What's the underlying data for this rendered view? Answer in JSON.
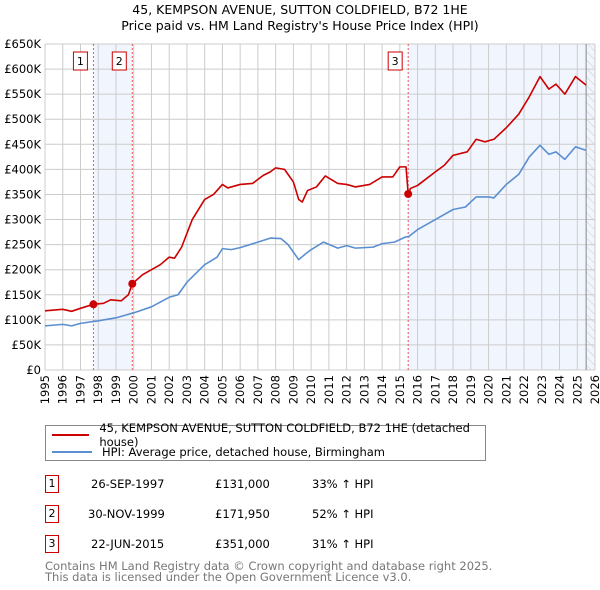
{
  "chart_data": {
    "type": "line",
    "title": "45, KEMPSON AVENUE, SUTTON COLDFIELD, B72 1HE",
    "subtitle": "Price paid vs. HM Land Registry's House Price Index (HPI)",
    "xlim": [
      1995,
      2026
    ],
    "ylim": [
      0,
      650000
    ],
    "x_ticks": [
      "1995",
      "1996",
      "1997",
      "1998",
      "1999",
      "2000",
      "2001",
      "2002",
      "2003",
      "2004",
      "2005",
      "2006",
      "2007",
      "2008",
      "2009",
      "2010",
      "2011",
      "2012",
      "2013",
      "2014",
      "2015",
      "2016",
      "2017",
      "2018",
      "2019",
      "2020",
      "2021",
      "2022",
      "2023",
      "2024",
      "2025",
      "2026"
    ],
    "y_ticks": [
      {
        "v": 0,
        "label": "£0"
      },
      {
        "v": 50000,
        "label": "£50K"
      },
      {
        "v": 100000,
        "label": "£100K"
      },
      {
        "v": 150000,
        "label": "£150K"
      },
      {
        "v": 200000,
        "label": "£200K"
      },
      {
        "v": 250000,
        "label": "£250K"
      },
      {
        "v": 300000,
        "label": "£300K"
      },
      {
        "v": 350000,
        "label": "£350K"
      },
      {
        "v": 400000,
        "label": "£400K"
      },
      {
        "v": 450000,
        "label": "£450K"
      },
      {
        "v": 500000,
        "label": "£500K"
      },
      {
        "v": 550000,
        "label": "£550K"
      },
      {
        "v": 600000,
        "label": "£600K"
      },
      {
        "v": 650000,
        "label": "£650K"
      }
    ],
    "grid": true,
    "shaded_periods": [
      [
        1997.73,
        1999.92
      ],
      [
        2015.47,
        2026
      ]
    ],
    "hatched_from": 2025.5,
    "series": [
      {
        "name": "45, KEMPSON AVENUE, SUTTON COLDFIELD, B72 1HE (detached house)",
        "color": "#cc0000",
        "x": [
          1995,
          1996,
          1996.5,
          1997,
          1997.73,
          1998.3,
          1998.7,
          1999.3,
          1999.7,
          1999.92,
          2000.5,
          2001.5,
          2002,
          2002.3,
          2002.7,
          2003.3,
          2004,
          2004.5,
          2005,
          2005.3,
          2006,
          2006.7,
          2007.3,
          2007.7,
          2008,
          2008.5,
          2009,
          2009.3,
          2009.5,
          2009.8,
          2010.3,
          2010.8,
          2011.5,
          2012,
          2012.5,
          2013.3,
          2014,
          2014.6,
          2015,
          2015.35,
          2015.47,
          2015.6,
          2016,
          2017,
          2017.5,
          2018,
          2018.8,
          2019.3,
          2019.8,
          2020.3,
          2021,
          2021.7,
          2022.3,
          2022.9,
          2023.4,
          2023.8,
          2024.3,
          2024.9,
          2025.5
        ],
        "y": [
          118,
          121,
          117,
          123,
          131,
          133,
          140,
          138,
          150,
          172,
          190,
          210,
          225,
          223,
          245,
          300,
          340,
          350,
          370,
          363,
          370,
          372,
          388,
          395,
          403,
          400,
          375,
          340,
          335,
          358,
          365,
          387,
          372,
          370,
          365,
          370,
          385,
          385,
          405,
          405,
          351,
          362,
          368,
          395,
          408,
          428,
          435,
          460,
          455,
          460,
          483,
          510,
          545,
          585,
          560,
          570,
          550,
          585,
          568
        ]
      },
      {
        "name": "HPI: Average price, detached house, Birmingham",
        "color": "#5b8fd1",
        "x": [
          1995,
          1996,
          1996.5,
          1997,
          1998,
          1999,
          2000,
          2001,
          2002,
          2002.5,
          2003,
          2004,
          2004.7,
          2005,
          2005.5,
          2006,
          2007,
          2007.7,
          2008.3,
          2008.7,
          2009,
          2009.3,
          2009.7,
          2010,
          2010.7,
          2011.5,
          2012,
          2012.5,
          2013.5,
          2014,
          2014.7,
          2015.3,
          2015.5,
          2016,
          2017,
          2018,
          2018.7,
          2019.3,
          2020,
          2020.3,
          2021,
          2021.7,
          2022.3,
          2022.9,
          2023.4,
          2023.8,
          2024.3,
          2024.9,
          2025.5
        ],
        "y": [
          88,
          91,
          88,
          93,
          98,
          104,
          114,
          126,
          145,
          150,
          175,
          210,
          225,
          242,
          240,
          244,
          255,
          263,
          262,
          250,
          235,
          220,
          232,
          240,
          255,
          243,
          248,
          243,
          245,
          252,
          255,
          265,
          266,
          280,
          300,
          320,
          325,
          345,
          345,
          343,
          370,
          390,
          425,
          448,
          430,
          435,
          420,
          445,
          438
        ]
      }
    ],
    "y_units_note": "series y values in £ thousands",
    "sales": [
      {
        "id": "1",
        "x": 1997.73,
        "y": 131
      },
      {
        "id": "2",
        "x": 1999.92,
        "y": 171.95
      },
      {
        "id": "3",
        "x": 2015.47,
        "y": 351
      }
    ]
  },
  "legend": {
    "property": "45, KEMPSON AVENUE, SUTTON COLDFIELD, B72 1HE (detached house)",
    "hpi": "HPI: Average price, detached house, Birmingham"
  },
  "transactions": [
    {
      "id": "1",
      "date": "26-SEP-1997",
      "price": "£131,000",
      "hpi": "33% ↑ HPI"
    },
    {
      "id": "2",
      "date": "30-NOV-1999",
      "price": "£171,950",
      "hpi": "52% ↑ HPI"
    },
    {
      "id": "3",
      "date": "22-JUN-2015",
      "price": "£351,000",
      "hpi": "31% ↑ HPI"
    }
  ],
  "footer": {
    "line1": "Contains HM Land Registry data © Crown copyright and database right 2025.",
    "line2": "This data is licensed under the Open Government Licence v3.0."
  }
}
